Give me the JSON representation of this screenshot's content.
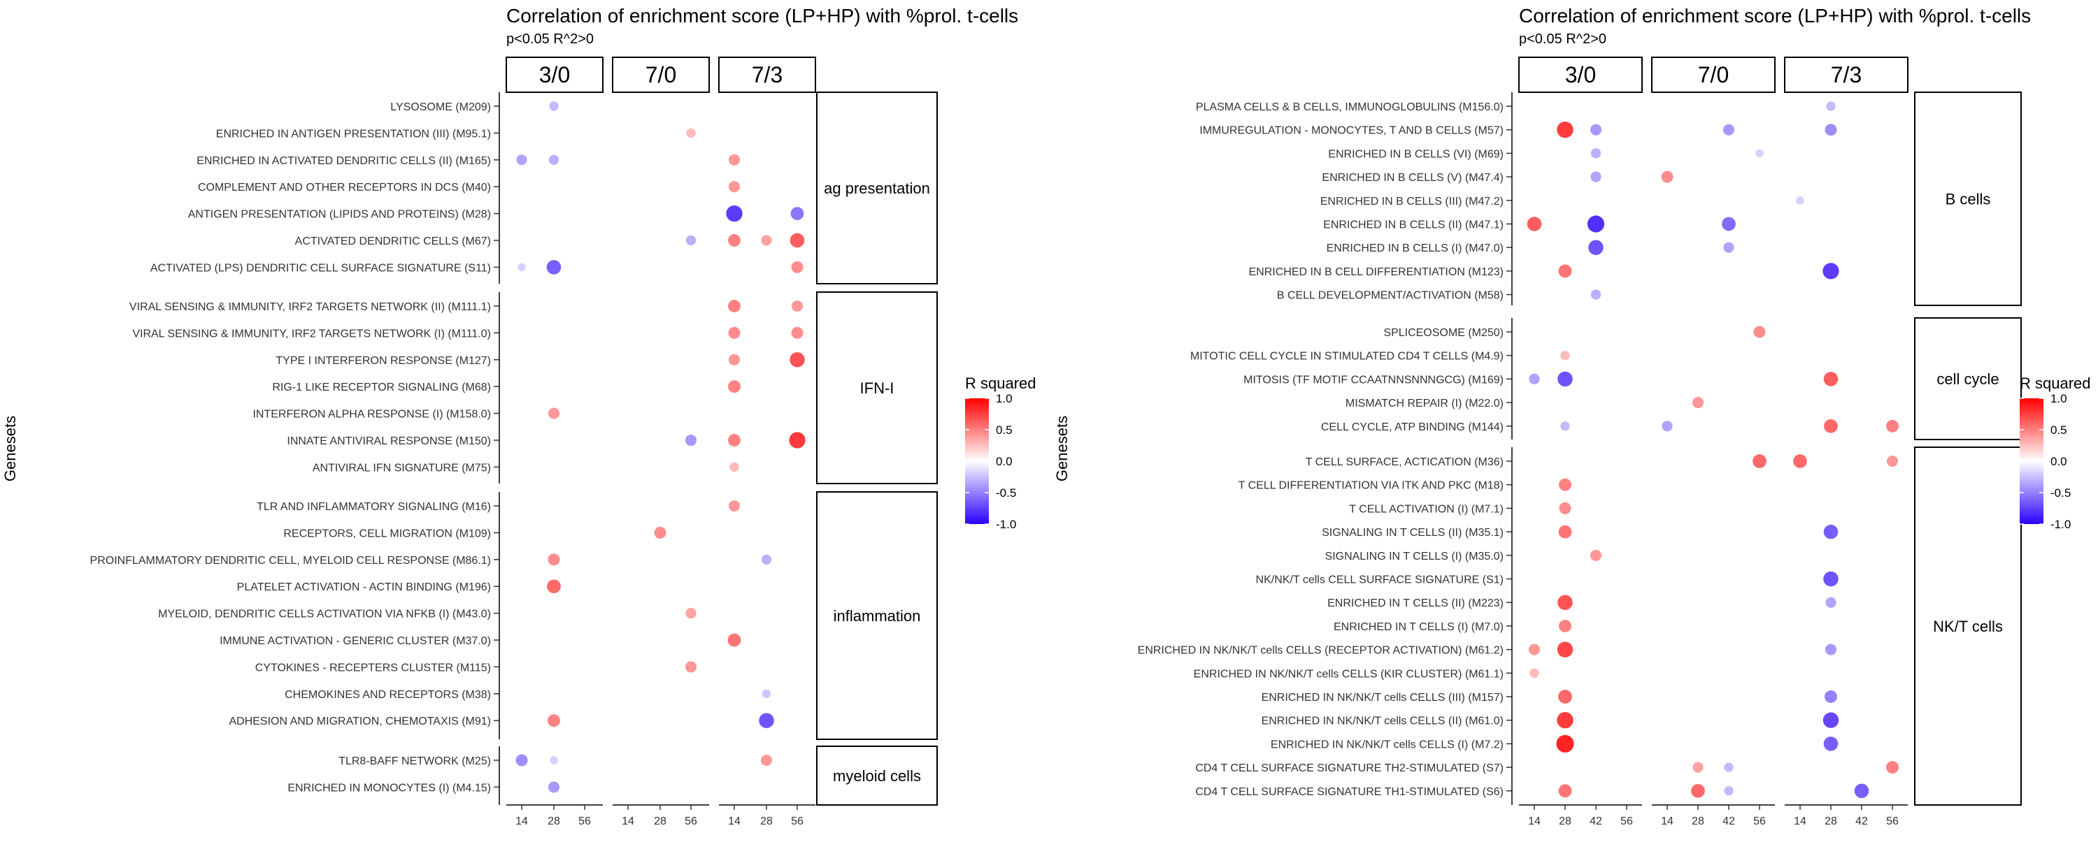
{
  "colors": {
    "negative_end": "#2a00ff",
    "mid": "#ffffff",
    "positive_end": "#ff0000",
    "panel_border": "#000000",
    "axis_text": "#333333"
  },
  "chart_data": [
    {
      "type": "scatter",
      "title": "Correlation of enrichment score (LP+HP) with %prol. t-cells",
      "subtitle": "p<0.05 R^2>0",
      "ylabel": "Genesets",
      "facet_cols": [
        "3/0",
        "7/0",
        "7/3"
      ],
      "x_ticks": [
        "14",
        "28",
        "56"
      ],
      "legend": {
        "title": "R squared",
        "ticks": [
          "1.0",
          "0.5",
          "0.0",
          "-0.5",
          "-1.0"
        ],
        "range": [
          -1,
          1
        ]
      },
      "groups": [
        {
          "name": "ag presentation",
          "genesets": [
            "LYSOSOME (M209)",
            "ENRICHED IN ANTIGEN PRESENTATION (III) (M95.1)",
            "ENRICHED IN ACTIVATED DENDRITIC CELLS (II) (M165)",
            "COMPLEMENT AND OTHER RECEPTORS IN DCS (M40)",
            "ANTIGEN PRESENTATION (LIPIDS AND PROTEINS) (M28)",
            "ACTIVATED DENDRITIC CELLS (M67)",
            "ACTIVATED (LPS) DENDRITIC CELL SURFACE SIGNATURE (S11)"
          ]
        },
        {
          "name": "IFN-I",
          "genesets": [
            "VIRAL SENSING & IMMUNITY,  IRF2 TARGETS NETWORK (II) (M111.1)",
            "VIRAL SENSING & IMMUNITY,  IRF2 TARGETS NETWORK (I) (M111.0)",
            "TYPE I INTERFERON RESPONSE (M127)",
            "RIG-1 LIKE RECEPTOR SIGNALING (M68)",
            "INTERFERON ALPHA RESPONSE (I) (M158.0)",
            "INNATE ANTIVIRAL RESPONSE (M150)",
            "ANTIVIRAL IFN SIGNATURE (M75)"
          ]
        },
        {
          "name": "inflammation",
          "genesets": [
            "TLR AND INFLAMMATORY SIGNALING (M16)",
            "RECEPTORS, CELL MIGRATION (M109)",
            "PROINFLAMMATORY DENDRITIC CELL, MYELOID CELL RESPONSE (M86.1)",
            "PLATELET ACTIVATION - ACTIN BINDING (M196)",
            "MYELOID, DENDRITIC CELLS ACTIVATION VIA NFKB (I) (M43.0)",
            "IMMUNE ACTIVATION - GENERIC CLUSTER (M37.0)",
            "CYTOKINES - RECEPTERS CLUSTER (M115)",
            "CHEMOKINES AND RECEPTORS (M38)",
            "ADHESION AND MIGRATION, CHEMOTAXIS (M91)"
          ]
        },
        {
          "name": "myeloid cells",
          "genesets": [
            "TLR8-BAFF NETWORK (M25)",
            "ENRICHED IN MONOCYTES (I) (M4.15)"
          ]
        }
      ],
      "points": [
        {
          "g": 0,
          "r": 0,
          "c": 0,
          "x": "28",
          "v": -0.3
        },
        {
          "g": 0,
          "r": 1,
          "c": 1,
          "x": "56",
          "v": 0.3
        },
        {
          "g": 0,
          "r": 2,
          "c": 0,
          "x": "14",
          "v": -0.4
        },
        {
          "g": 0,
          "r": 2,
          "c": 0,
          "x": "28",
          "v": -0.35
        },
        {
          "g": 0,
          "r": 2,
          "c": 2,
          "x": "14",
          "v": 0.45
        },
        {
          "g": 0,
          "r": 3,
          "c": 2,
          "x": "14",
          "v": 0.45
        },
        {
          "g": 0,
          "r": 4,
          "c": 2,
          "x": "14",
          "v": -0.85
        },
        {
          "g": 0,
          "r": 4,
          "c": 2,
          "x": "56",
          "v": -0.6
        },
        {
          "g": 0,
          "r": 5,
          "c": 1,
          "x": "56",
          "v": -0.35
        },
        {
          "g": 0,
          "r": 5,
          "c": 2,
          "x": "14",
          "v": 0.55
        },
        {
          "g": 0,
          "r": 5,
          "c": 2,
          "x": "28",
          "v": 0.4
        },
        {
          "g": 0,
          "r": 5,
          "c": 2,
          "x": "56",
          "v": 0.7
        },
        {
          "g": 0,
          "r": 6,
          "c": 0,
          "x": "14",
          "v": -0.2
        },
        {
          "g": 0,
          "r": 6,
          "c": 0,
          "x": "28",
          "v": -0.7
        },
        {
          "g": 0,
          "r": 6,
          "c": 2,
          "x": "56",
          "v": 0.5
        },
        {
          "g": 1,
          "r": 0,
          "c": 2,
          "x": "14",
          "v": 0.55
        },
        {
          "g": 1,
          "r": 0,
          "c": 2,
          "x": "56",
          "v": 0.45
        },
        {
          "g": 1,
          "r": 1,
          "c": 2,
          "x": "14",
          "v": 0.5
        },
        {
          "g": 1,
          "r": 1,
          "c": 2,
          "x": "56",
          "v": 0.5
        },
        {
          "g": 1,
          "r": 2,
          "c": 2,
          "x": "14",
          "v": 0.45
        },
        {
          "g": 1,
          "r": 2,
          "c": 2,
          "x": "56",
          "v": 0.75
        },
        {
          "g": 1,
          "r": 3,
          "c": 2,
          "x": "14",
          "v": 0.55
        },
        {
          "g": 1,
          "r": 4,
          "c": 0,
          "x": "28",
          "v": 0.45
        },
        {
          "g": 1,
          "r": 5,
          "c": 1,
          "x": "56",
          "v": -0.45
        },
        {
          "g": 1,
          "r": 5,
          "c": 2,
          "x": "14",
          "v": 0.55
        },
        {
          "g": 1,
          "r": 5,
          "c": 2,
          "x": "56",
          "v": 0.85
        },
        {
          "g": 1,
          "r": 6,
          "c": 2,
          "x": "14",
          "v": 0.3
        },
        {
          "g": 2,
          "r": 0,
          "c": 2,
          "x": "14",
          "v": 0.45
        },
        {
          "g": 2,
          "r": 1,
          "c": 1,
          "x": "28",
          "v": 0.5
        },
        {
          "g": 2,
          "r": 2,
          "c": 0,
          "x": "28",
          "v": 0.5
        },
        {
          "g": 2,
          "r": 2,
          "c": 2,
          "x": "28",
          "v": -0.35
        },
        {
          "g": 2,
          "r": 3,
          "c": 0,
          "x": "28",
          "v": 0.65
        },
        {
          "g": 2,
          "r": 4,
          "c": 1,
          "x": "56",
          "v": 0.4
        },
        {
          "g": 2,
          "r": 5,
          "c": 2,
          "x": "14",
          "v": 0.6
        },
        {
          "g": 2,
          "r": 6,
          "c": 1,
          "x": "56",
          "v": 0.45
        },
        {
          "g": 2,
          "r": 7,
          "c": 2,
          "x": "28",
          "v": -0.25
        },
        {
          "g": 2,
          "r": 8,
          "c": 0,
          "x": "28",
          "v": 0.55
        },
        {
          "g": 2,
          "r": 8,
          "c": 2,
          "x": "28",
          "v": -0.75
        },
        {
          "g": 3,
          "r": 0,
          "c": 0,
          "x": "14",
          "v": -0.5
        },
        {
          "g": 3,
          "r": 0,
          "c": 0,
          "x": "28",
          "v": -0.2
        },
        {
          "g": 3,
          "r": 0,
          "c": 2,
          "x": "28",
          "v": 0.45
        },
        {
          "g": 3,
          "r": 1,
          "c": 0,
          "x": "28",
          "v": -0.45
        }
      ]
    },
    {
      "type": "scatter",
      "title": "Correlation of enrichment score (LP+HP) with %prol. t-cells",
      "subtitle": "p<0.05 R^2>0",
      "ylabel": "Genesets",
      "facet_cols": [
        "3/0",
        "7/0",
        "7/3"
      ],
      "x_ticks": [
        "14",
        "28",
        "42",
        "56"
      ],
      "legend": {
        "title": "R squared",
        "ticks": [
          "1.0",
          "0.5",
          "0.0",
          "-0.5",
          "-1.0"
        ],
        "range": [
          -1,
          1
        ]
      },
      "groups": [
        {
          "name": "B cells",
          "genesets": [
            "PLASMA CELLS & B CELLS, IMMUNOGLOBULINS (M156.0)",
            "IMMUREGULATION - MONOCYTES, T AND B CELLS (M57)",
            "ENRICHED IN B CELLS (VI) (M69)",
            "ENRICHED IN B CELLS (V) (M47.4)",
            "ENRICHED IN B CELLS (III) (M47.2)",
            "ENRICHED IN B CELLS (II) (M47.1)",
            "ENRICHED IN B CELLS (I) (M47.0)",
            "ENRICHED IN B CELL DIFFERENTIATION (M123)",
            "B CELL DEVELOPMENT/ACTIVATION (M58)"
          ]
        },
        {
          "name": "cell cycle",
          "genesets": [
            "SPLICEOSOME (M250)",
            "MITOTIC CELL CYCLE IN STIMULATED CD4 T CELLS (M4.9)",
            "MITOSIS (TF MOTIF CCAATNNSNNNGCG) (M169)",
            "MISMATCH REPAIR (I) (M22.0)",
            "CELL CYCLE, ATP BINDING (M144)"
          ]
        },
        {
          "name": "NK/T cells",
          "genesets": [
            "T CELL SURFACE, ACTICATION (M36)",
            "T CELL DIFFERENTIATION VIA ITK AND PKC (M18)",
            "T CELL ACTIVATION (I) (M7.1)",
            "SIGNALING IN T CELLS (II) (M35.1)",
            "SIGNALING IN T CELLS (I) (M35.0)",
            "NK/NK/T cells CELL SURFACE SIGNATURE (S1)",
            "ENRICHED IN T CELLS (II) (M223)",
            "ENRICHED IN T CELLS (I) (M7.0)",
            "ENRICHED IN NK/NK/T cells CELLS (RECEPTOR ACTIVATION) (M61.2)",
            "ENRICHED IN NK/NK/T cells CELLS (KIR CLUSTER) (M61.1)",
            "ENRICHED IN NK/NK/T cells CELLS (III) (M157)",
            "ENRICHED IN NK/NK/T cells CELLS (II) (M61.0)",
            "ENRICHED IN NK/NK/T cells CELLS (I) (M7.2)",
            "CD4 T CELL SURFACE SIGNATURE TH2-STIMULATED (S7)",
            "CD4 T CELL SURFACE SIGNATURE TH1-STIMULATED (S6)"
          ]
        }
      ],
      "points": [
        {
          "g": 0,
          "r": 0,
          "c": 2,
          "x": "28",
          "v": -0.3
        },
        {
          "g": 0,
          "r": 1,
          "c": 0,
          "x": "28",
          "v": 0.85
        },
        {
          "g": 0,
          "r": 1,
          "c": 0,
          "x": "42",
          "v": -0.45
        },
        {
          "g": 0,
          "r": 1,
          "c": 1,
          "x": "42",
          "v": -0.45
        },
        {
          "g": 0,
          "r": 1,
          "c": 2,
          "x": "28",
          "v": -0.5
        },
        {
          "g": 0,
          "r": 2,
          "c": 0,
          "x": "42",
          "v": -0.35
        },
        {
          "g": 0,
          "r": 2,
          "c": 1,
          "x": "56",
          "v": -0.2
        },
        {
          "g": 0,
          "r": 3,
          "c": 0,
          "x": "42",
          "v": -0.4
        },
        {
          "g": 0,
          "r": 3,
          "c": 1,
          "x": "14",
          "v": 0.5
        },
        {
          "g": 0,
          "r": 4,
          "c": 2,
          "x": "14",
          "v": -0.2
        },
        {
          "g": 0,
          "r": 5,
          "c": 0,
          "x": "14",
          "v": 0.7
        },
        {
          "g": 0,
          "r": 5,
          "c": 0,
          "x": "42",
          "v": -0.9
        },
        {
          "g": 0,
          "r": 5,
          "c": 1,
          "x": "42",
          "v": -0.65
        },
        {
          "g": 0,
          "r": 6,
          "c": 0,
          "x": "42",
          "v": -0.75
        },
        {
          "g": 0,
          "r": 6,
          "c": 1,
          "x": "42",
          "v": -0.4
        },
        {
          "g": 0,
          "r": 7,
          "c": 0,
          "x": "28",
          "v": 0.6
        },
        {
          "g": 0,
          "r": 7,
          "c": 2,
          "x": "28",
          "v": -0.85
        },
        {
          "g": 0,
          "r": 8,
          "c": 0,
          "x": "42",
          "v": -0.35
        },
        {
          "g": 1,
          "r": 0,
          "c": 1,
          "x": "56",
          "v": 0.5
        },
        {
          "g": 1,
          "r": 1,
          "c": 0,
          "x": "28",
          "v": 0.3
        },
        {
          "g": 1,
          "r": 2,
          "c": 0,
          "x": "14",
          "v": -0.4
        },
        {
          "g": 1,
          "r": 2,
          "c": 0,
          "x": "28",
          "v": -0.75
        },
        {
          "g": 1,
          "r": 2,
          "c": 2,
          "x": "28",
          "v": 0.7
        },
        {
          "g": 1,
          "r": 3,
          "c": 1,
          "x": "28",
          "v": 0.45
        },
        {
          "g": 1,
          "r": 4,
          "c": 0,
          "x": "28",
          "v": -0.3
        },
        {
          "g": 1,
          "r": 4,
          "c": 1,
          "x": "14",
          "v": -0.4
        },
        {
          "g": 1,
          "r": 4,
          "c": 2,
          "x": "28",
          "v": 0.65
        },
        {
          "g": 1,
          "r": 4,
          "c": 2,
          "x": "56",
          "v": 0.55
        },
        {
          "g": 2,
          "r": 0,
          "c": 1,
          "x": "56",
          "v": 0.65
        },
        {
          "g": 2,
          "r": 0,
          "c": 2,
          "x": "14",
          "v": 0.65
        },
        {
          "g": 2,
          "r": 0,
          "c": 2,
          "x": "56",
          "v": 0.45
        },
        {
          "g": 2,
          "r": 1,
          "c": 0,
          "x": "28",
          "v": 0.55
        },
        {
          "g": 2,
          "r": 2,
          "c": 0,
          "x": "28",
          "v": 0.5
        },
        {
          "g": 2,
          "r": 3,
          "c": 0,
          "x": "28",
          "v": 0.6
        },
        {
          "g": 2,
          "r": 3,
          "c": 2,
          "x": "28",
          "v": -0.7
        },
        {
          "g": 2,
          "r": 4,
          "c": 0,
          "x": "42",
          "v": 0.45
        },
        {
          "g": 2,
          "r": 5,
          "c": 2,
          "x": "28",
          "v": -0.75
        },
        {
          "g": 2,
          "r": 6,
          "c": 0,
          "x": "28",
          "v": 0.75
        },
        {
          "g": 2,
          "r": 6,
          "c": 2,
          "x": "28",
          "v": -0.4
        },
        {
          "g": 2,
          "r": 7,
          "c": 0,
          "x": "28",
          "v": 0.55
        },
        {
          "g": 2,
          "r": 8,
          "c": 0,
          "x": "14",
          "v": 0.45
        },
        {
          "g": 2,
          "r": 8,
          "c": 0,
          "x": "28",
          "v": 0.8
        },
        {
          "g": 2,
          "r": 8,
          "c": 2,
          "x": "28",
          "v": -0.45
        },
        {
          "g": 2,
          "r": 9,
          "c": 0,
          "x": "14",
          "v": 0.3
        },
        {
          "g": 2,
          "r": 10,
          "c": 0,
          "x": "28",
          "v": 0.65
        },
        {
          "g": 2,
          "r": 10,
          "c": 2,
          "x": "28",
          "v": -0.55
        },
        {
          "g": 2,
          "r": 11,
          "c": 0,
          "x": "28",
          "v": 0.85
        },
        {
          "g": 2,
          "r": 11,
          "c": 2,
          "x": "28",
          "v": -0.8
        },
        {
          "g": 2,
          "r": 12,
          "c": 0,
          "x": "28",
          "v": 0.95
        },
        {
          "g": 2,
          "r": 12,
          "c": 2,
          "x": "28",
          "v": -0.7
        },
        {
          "g": 2,
          "r": 13,
          "c": 1,
          "x": "28",
          "v": 0.4
        },
        {
          "g": 2,
          "r": 13,
          "c": 1,
          "x": "42",
          "v": -0.3
        },
        {
          "g": 2,
          "r": 13,
          "c": 2,
          "x": "56",
          "v": 0.55
        },
        {
          "g": 2,
          "r": 14,
          "c": 0,
          "x": "28",
          "v": 0.6
        },
        {
          "g": 2,
          "r": 14,
          "c": 1,
          "x": "28",
          "v": 0.65
        },
        {
          "g": 2,
          "r": 14,
          "c": 1,
          "x": "42",
          "v": -0.3
        },
        {
          "g": 2,
          "r": 14,
          "c": 2,
          "x": "42",
          "v": -0.7
        }
      ]
    }
  ]
}
